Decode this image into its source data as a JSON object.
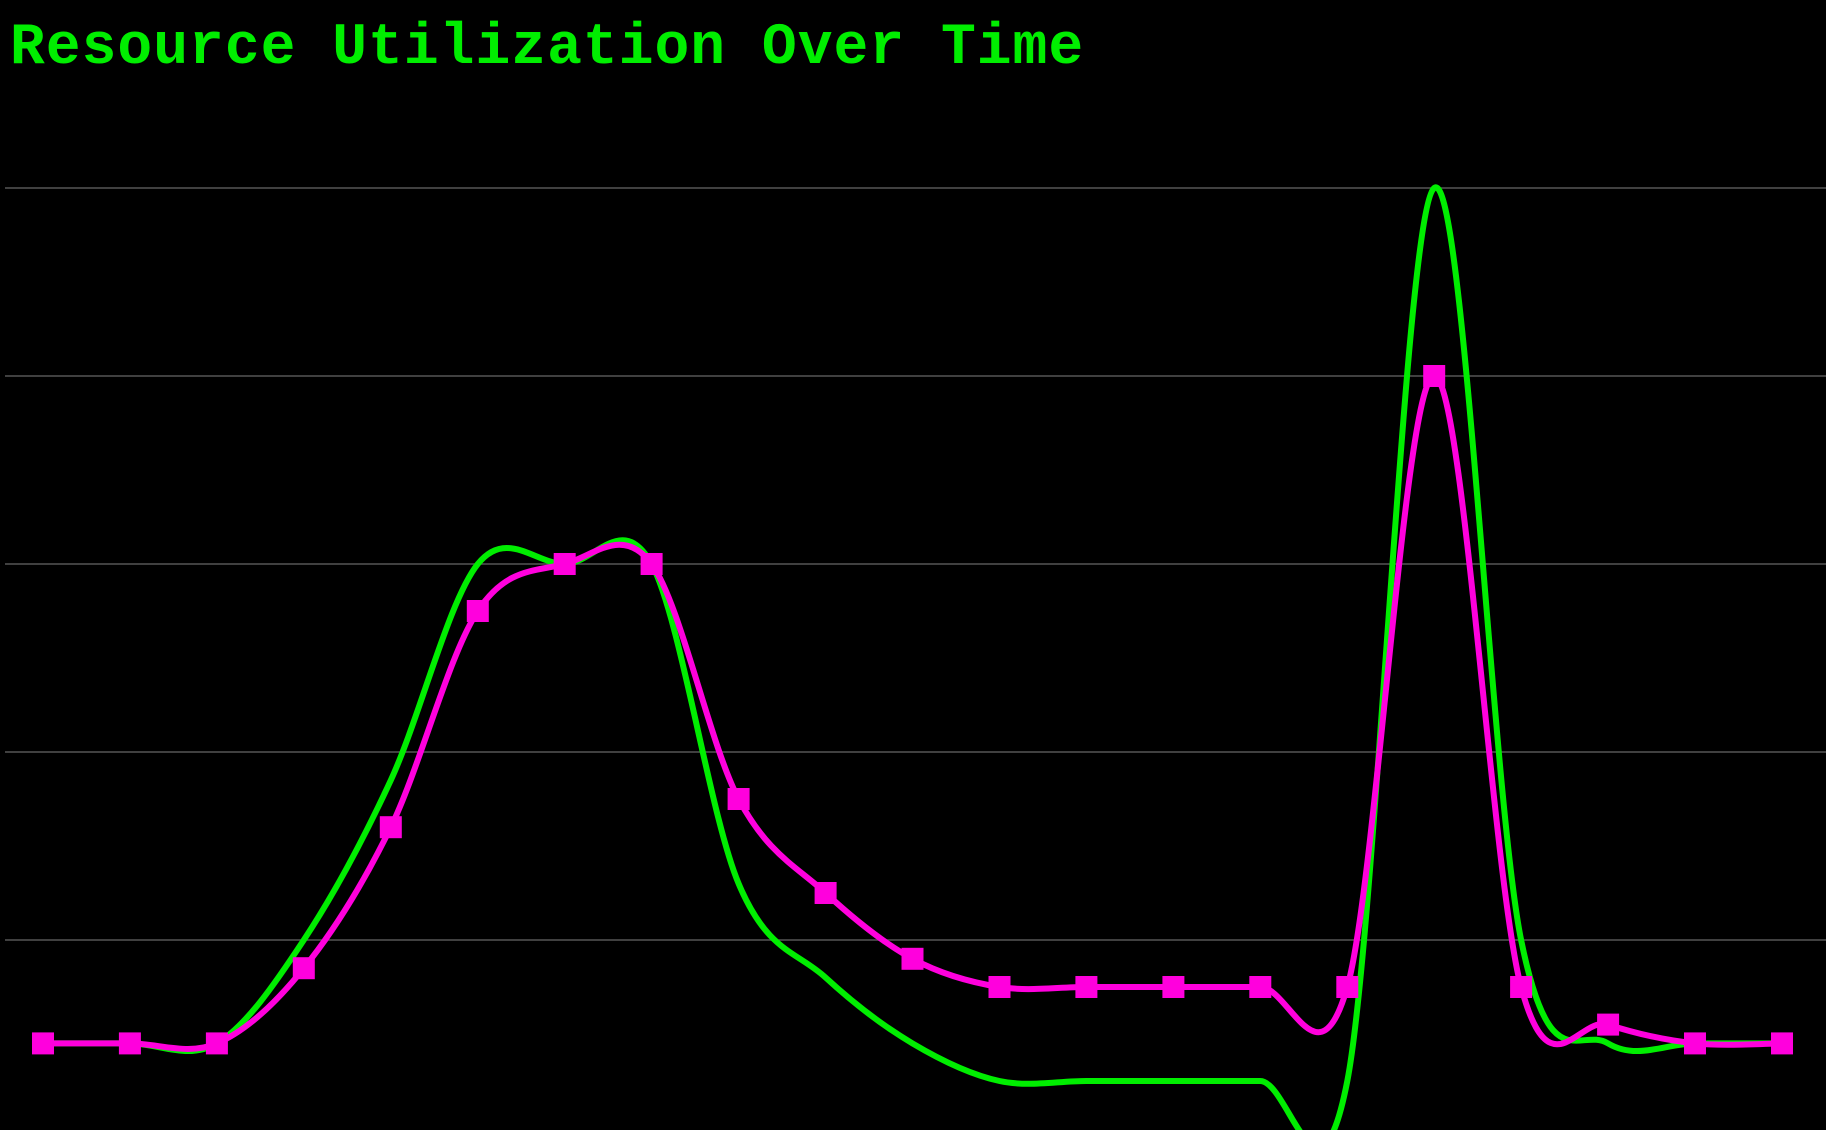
{
  "chart_data": {
    "type": "line",
    "title": "Resource Utilization Over Time",
    "xlabel": "",
    "ylabel": "",
    "x": [
      0,
      1,
      2,
      3,
      4,
      5,
      6,
      7,
      8,
      9,
      10,
      11,
      12,
      13,
      14,
      15,
      16,
      17,
      18,
      19,
      20
    ],
    "ylim": [
      0,
      5.5
    ],
    "grid": true,
    "legend": "none",
    "series": [
      {
        "color": "#00ee00",
        "marker": "none",
        "values": [
          0.45,
          0.45,
          0.45,
          1.0,
          1.85,
          3.0,
          3.0,
          3.0,
          1.3,
          0.8,
          0.45,
          0.25,
          0.25,
          0.25,
          0.25,
          0.25,
          5.0,
          1.0,
          0.45,
          0.45,
          0.45
        ]
      },
      {
        "color": "#ff00dd",
        "marker": "square",
        "values": [
          0.45,
          0.45,
          0.45,
          0.85,
          1.6,
          2.75,
          3.0,
          3.0,
          1.75,
          1.25,
          0.9,
          0.75,
          0.75,
          0.75,
          0.75,
          0.75,
          4.0,
          0.75,
          0.55,
          0.45,
          0.45
        ]
      }
    ],
    "colors": {
      "background": "#000000",
      "title": "#00ee00",
      "grid": "#555555"
    }
  }
}
